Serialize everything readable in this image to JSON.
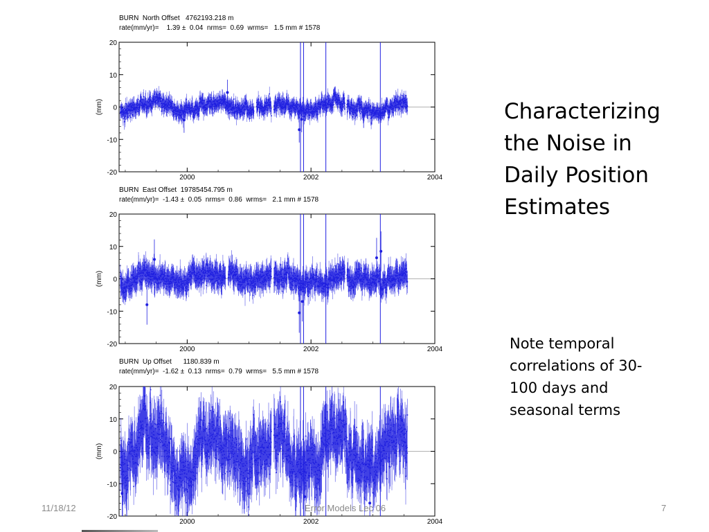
{
  "slide": {
    "title_lines": [
      "Characterizing",
      "the Noise in",
      "Daily Position",
      "Estimates"
    ],
    "note_lines": [
      "Note temporal",
      "correlations of 30-",
      "100 days and",
      "seasonal terms"
    ],
    "footer": {
      "date": "11/18/12",
      "center": "Error Models Lec 06",
      "page": "7"
    }
  },
  "panels": [
    {
      "header_line1": "BURN  North Offset   4762193.218 m",
      "header_line2": "rate(mm/yr)=    1.39 ±  0.04  nrms=  0.69  wrms=   1.5 mm # 1578"
    },
    {
      "header_line1": "BURN  East Offset  19785454.795 m",
      "header_line2": "rate(mm/yr)=  -1.43 ±  0.05  nrms=  0.86  wrms=   2.1 mm # 1578"
    },
    {
      "header_line1": "BURN  Up Offset      1180.839 m",
      "header_line2": "rate(mm/yr)=  -1.62 ±  0.13  nrms=  0.79  wrms=   5.5 mm # 1578"
    }
  ],
  "chart_data": [
    {
      "type": "scatter",
      "station": "BURN",
      "component": "North",
      "ylabel": "(mm)",
      "xlim": [
        1998.9,
        2004.0
      ],
      "ylim": [
        -20,
        20
      ],
      "xticks": [
        2000,
        2002,
        2004
      ],
      "yticks": [
        20,
        10,
        0,
        -10,
        -20
      ],
      "color": "#1f1fe0",
      "data_span": [
        1998.92,
        2003.56
      ],
      "gaps": [
        [
          2001.08,
          2001.12
        ],
        [
          2001.36,
          2001.4
        ],
        [
          2002.55,
          2002.58
        ]
      ],
      "spread_mm": 1.5,
      "errorbar_mm": 1.8,
      "seasonal_amp_mm": 1.2,
      "break_lines": [
        2001.83,
        2001.88,
        2002.24,
        2003.12
      ],
      "outliers": [
        [
          2001.81,
          -7.0
        ],
        [
          2001.85,
          -3.8
        ],
        [
          1999.95,
          -4.0
        ],
        [
          2000.65,
          4.5
        ],
        [
          2002.85,
          -2.5
        ]
      ]
    },
    {
      "type": "scatter",
      "station": "BURN",
      "component": "East",
      "ylabel": "(mm)",
      "xlim": [
        1998.9,
        2004.0
      ],
      "ylim": [
        -20,
        20
      ],
      "xticks": [
        2000,
        2002,
        2004
      ],
      "yticks": [
        20,
        10,
        0,
        -10,
        -20
      ],
      "color": "#1f1fe0",
      "data_span": [
        1998.92,
        2003.56
      ],
      "gaps": [
        [
          2000.62,
          2000.66
        ],
        [
          2001.36,
          2001.4
        ],
        [
          2002.55,
          2002.58
        ]
      ],
      "spread_mm": 2.1,
      "errorbar_mm": 2.8,
      "seasonal_amp_mm": 1.0,
      "break_lines": [
        2001.83,
        2001.88,
        2002.24,
        2003.12
      ],
      "outliers": [
        [
          2001.81,
          -10.5
        ],
        [
          2001.86,
          -7.0
        ],
        [
          1999.35,
          -8.0
        ],
        [
          2003.13,
          8.5
        ],
        [
          2003.06,
          6.5
        ],
        [
          1999.47,
          6.0
        ]
      ]
    },
    {
      "type": "scatter",
      "station": "BURN",
      "component": "Up",
      "ylabel": "(mm)",
      "xlim": [
        1998.9,
        2004.0
      ],
      "ylim": [
        -20,
        20
      ],
      "xticks": [
        2000,
        2002,
        2004
      ],
      "yticks": [
        20,
        10,
        0,
        -10,
        -20
      ],
      "color": "#1f1fe0",
      "data_span": [
        1998.92,
        2003.56
      ],
      "gaps": [
        [
          2001.36,
          2001.4
        ]
      ],
      "spread_mm": 5.5,
      "errorbar_mm": 6.5,
      "seasonal_amp_mm": 5.0,
      "break_lines": [
        2001.83,
        2001.88,
        2002.24,
        2003.12
      ],
      "outliers": [
        [
          1998.95,
          -13.0
        ],
        [
          2001.9,
          -14.0
        ],
        [
          2002.95,
          -16.0
        ]
      ]
    }
  ]
}
